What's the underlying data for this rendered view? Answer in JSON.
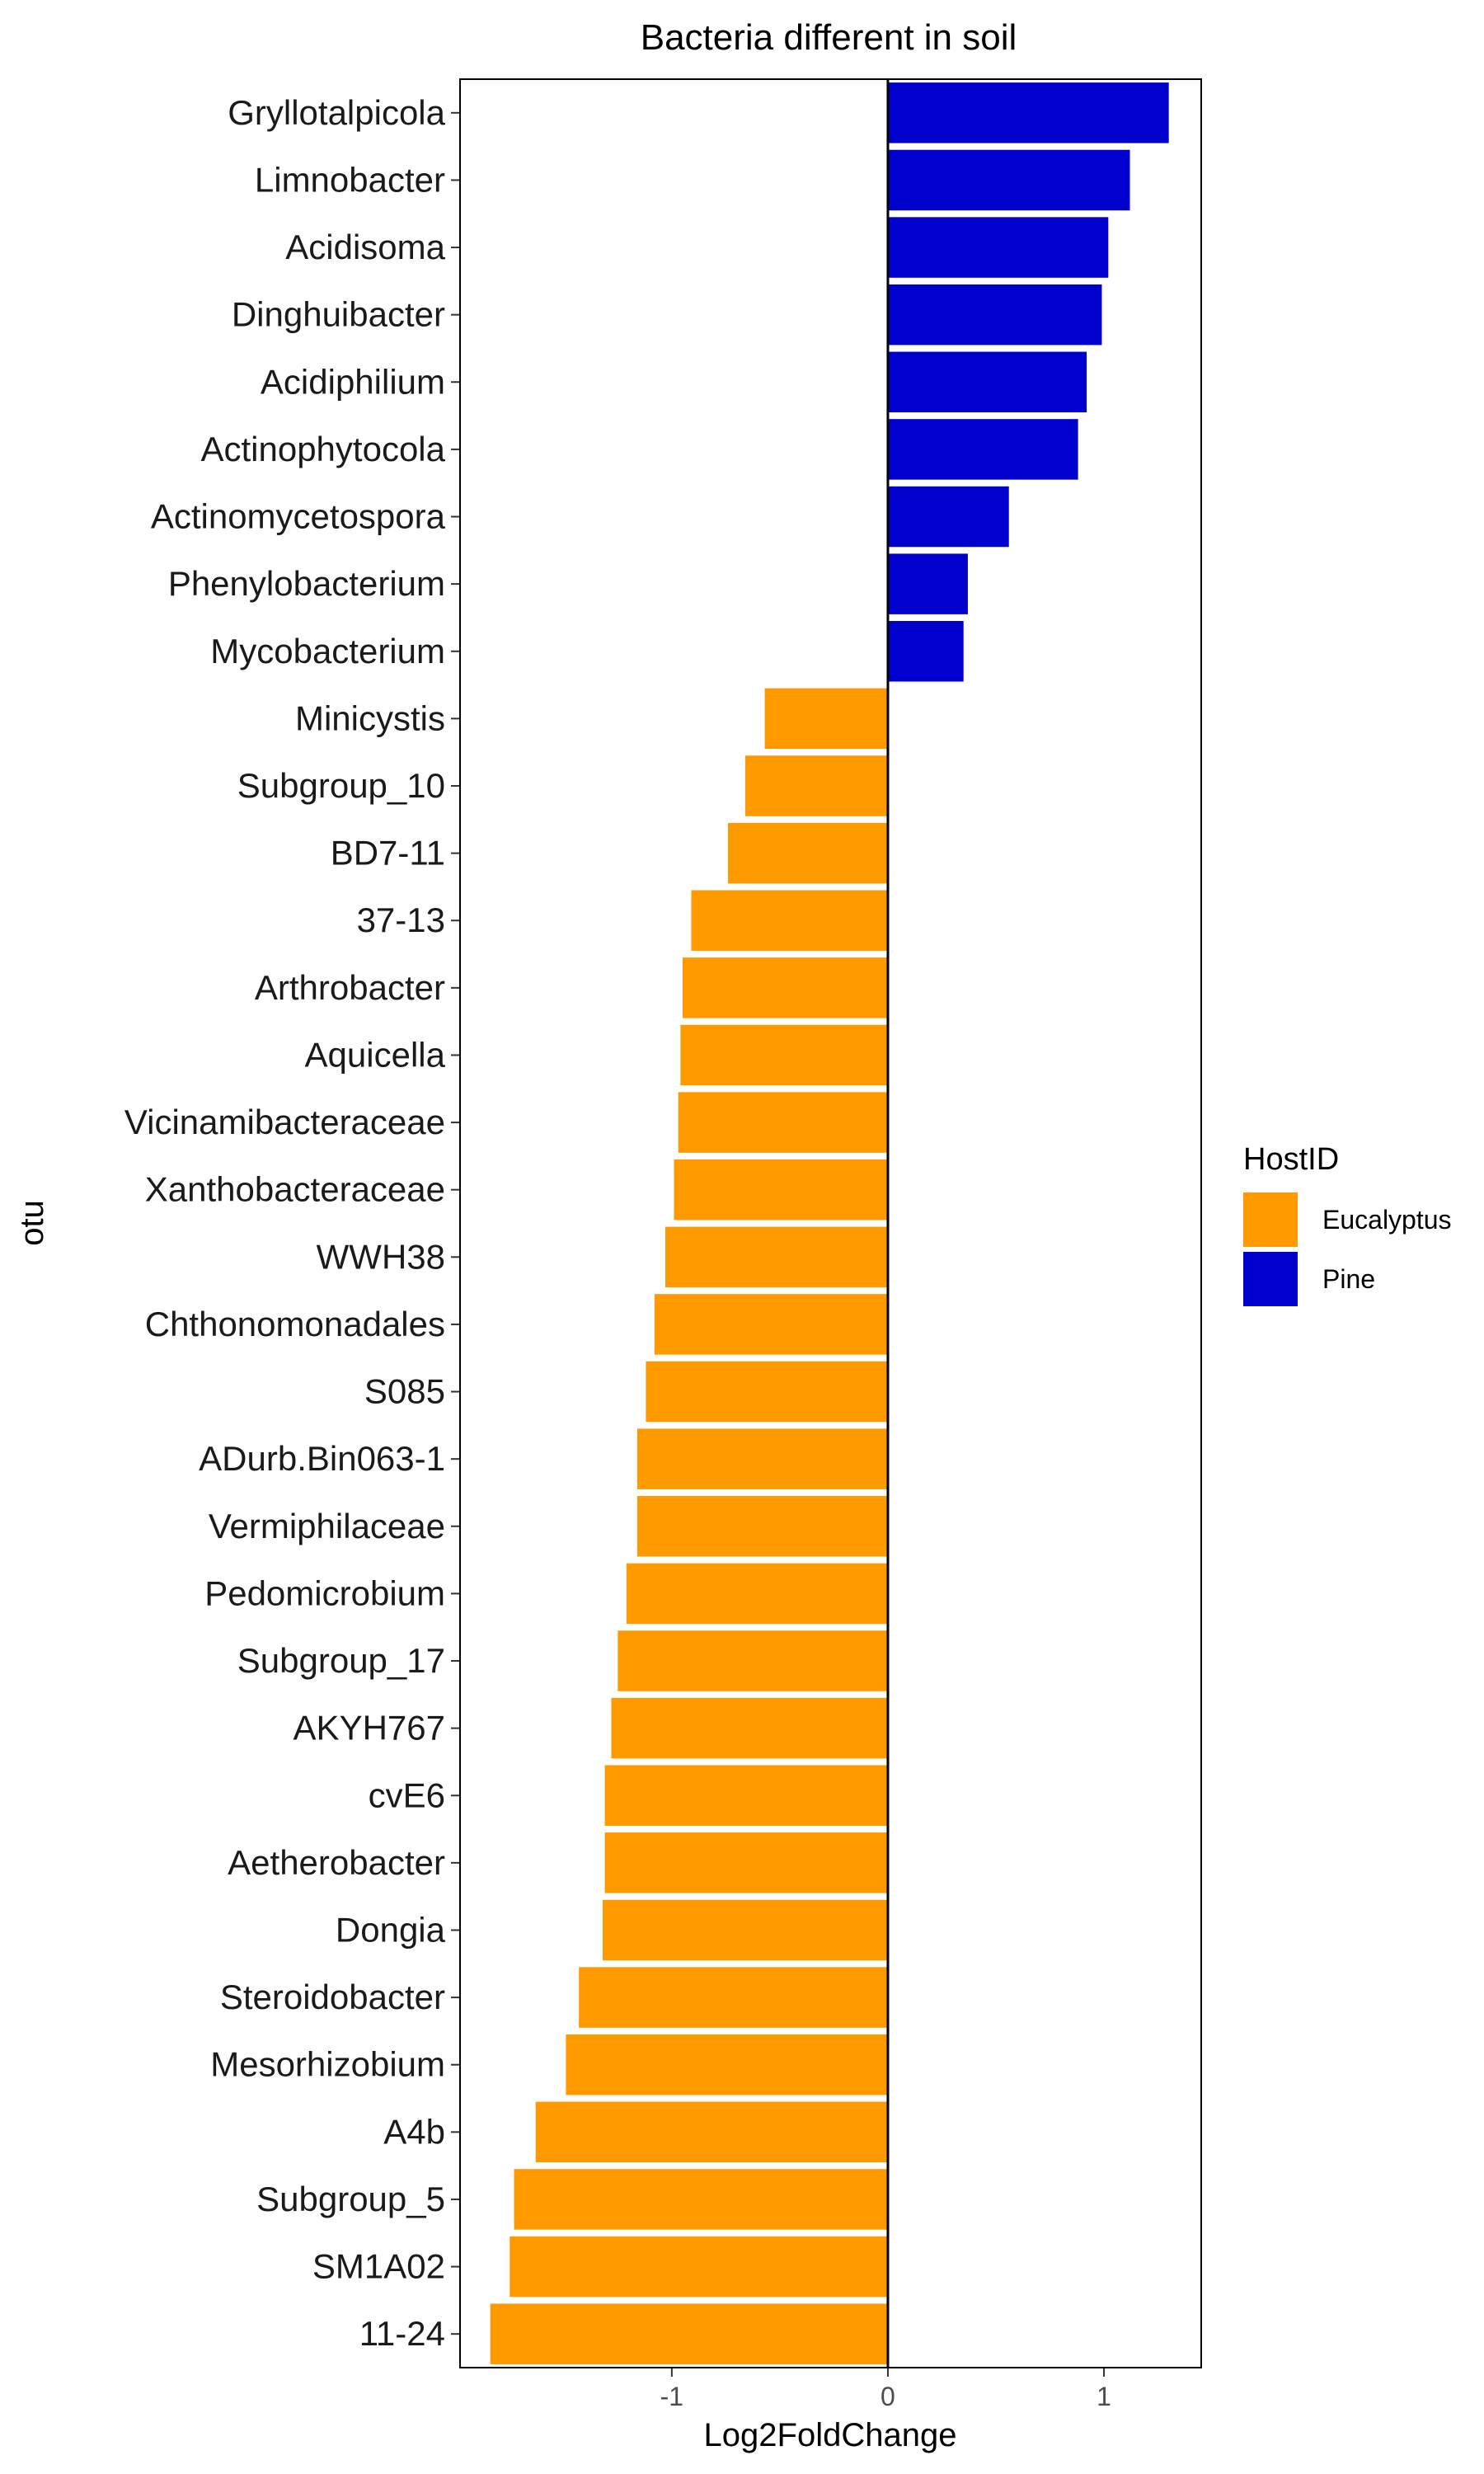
{
  "chart_data": {
    "type": "bar",
    "orientation": "horizontal",
    "title": "Bacteria different in soil",
    "xlabel": "Log2FoldChange",
    "ylabel": "otu",
    "xlim": [
      -1.98,
      1.45
    ],
    "xticks": [
      -1,
      0,
      1
    ],
    "xtick_labels": [
      "-1",
      "0",
      "1"
    ],
    "grid": false,
    "legend": {
      "title": "HostID",
      "placement": "right",
      "entries": [
        {
          "name": "Eucalyptus",
          "color": "#FF9900"
        },
        {
          "name": "Pine",
          "color": "#0000CC"
        }
      ]
    },
    "categories": [
      "Gryllotalpicola",
      "Limnobacter",
      "Acidisoma",
      "Dinghuibacter",
      "Acidiphilium",
      "Actinophytocola",
      "Actinomycetospora",
      "Phenylobacterium",
      "Mycobacterium",
      "Minicystis",
      "Subgroup_10",
      "BD7-11",
      "37-13",
      "Arthrobacter",
      "Aquicella",
      "Vicinamibacteraceae",
      "Xanthobacteraceae",
      "WWH38",
      "Chthonomonadales",
      "S085",
      "ADurb.Bin063-1",
      "Vermiphilaceae",
      "Pedomicrobium",
      "Subgroup_17",
      "AKYH767",
      "cvE6",
      "Aetherobacter",
      "Dongia",
      "Steroidobacter",
      "Mesorhizobium",
      "A4b",
      "Subgroup_5",
      "SM1A02",
      "11-24"
    ],
    "values": [
      1.3,
      1.12,
      1.02,
      0.99,
      0.92,
      0.88,
      0.56,
      0.37,
      0.35,
      -0.57,
      -0.66,
      -0.74,
      -0.91,
      -0.95,
      -0.96,
      -0.97,
      -0.99,
      -1.03,
      -1.08,
      -1.12,
      -1.16,
      -1.16,
      -1.21,
      -1.25,
      -1.28,
      -1.31,
      -1.31,
      -1.32,
      -1.43,
      -1.49,
      -1.63,
      -1.73,
      -1.75,
      -1.84
    ],
    "groups": [
      "Pine",
      "Pine",
      "Pine",
      "Pine",
      "Pine",
      "Pine",
      "Pine",
      "Pine",
      "Pine",
      "Eucalyptus",
      "Eucalyptus",
      "Eucalyptus",
      "Eucalyptus",
      "Eucalyptus",
      "Eucalyptus",
      "Eucalyptus",
      "Eucalyptus",
      "Eucalyptus",
      "Eucalyptus",
      "Eucalyptus",
      "Eucalyptus",
      "Eucalyptus",
      "Eucalyptus",
      "Eucalyptus",
      "Eucalyptus",
      "Eucalyptus",
      "Eucalyptus",
      "Eucalyptus",
      "Eucalyptus",
      "Eucalyptus",
      "Eucalyptus",
      "Eucalyptus",
      "Eucalyptus",
      "Eucalyptus"
    ]
  }
}
